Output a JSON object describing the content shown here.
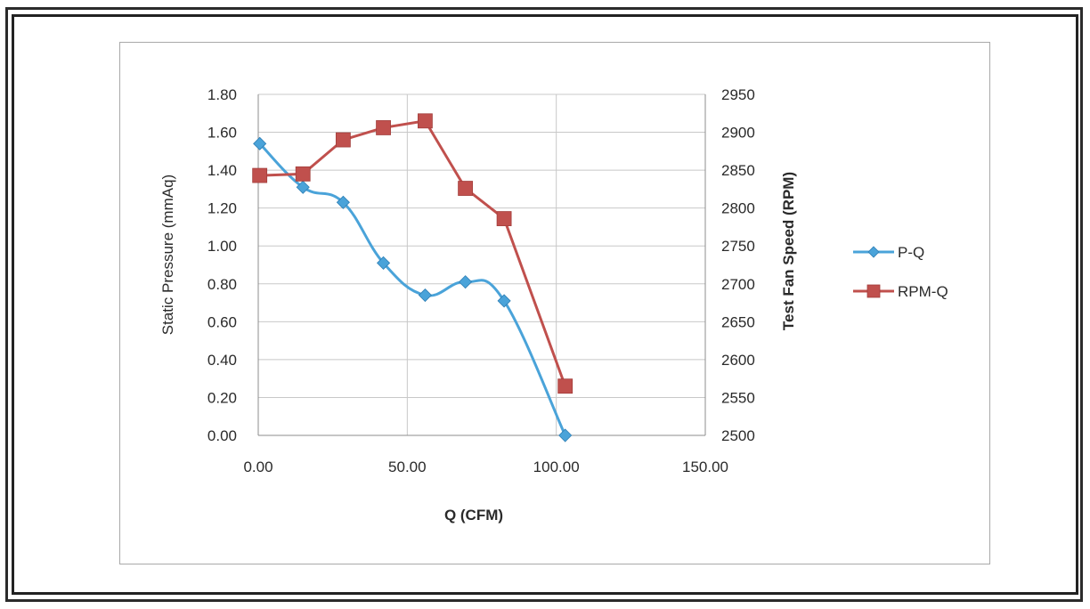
{
  "chart_data": {
    "type": "line",
    "title": "",
    "xlabel": "Q (CFM)",
    "ylabel": "Static Pressure (mmAq)",
    "y2label": "Test Fan Speed (RPM)",
    "xlim": [
      0,
      150
    ],
    "ylim": [
      0,
      1.8
    ],
    "y2lim": [
      2500,
      2950
    ],
    "x_ticks": [
      "0.00",
      "50.00",
      "100.00",
      "150.00"
    ],
    "y_ticks": [
      "0.00",
      "0.20",
      "0.40",
      "0.60",
      "0.80",
      "1.00",
      "1.20",
      "1.40",
      "1.60",
      "1.80"
    ],
    "y2_ticks": [
      "2500",
      "2550",
      "2600",
      "2650",
      "2700",
      "2750",
      "2800",
      "2850",
      "2900",
      "2950"
    ],
    "grid": true,
    "legend_position": "right",
    "series": [
      {
        "name": "P-Q",
        "axis": "left",
        "color": "#4aa3d9",
        "marker": "diamond",
        "smooth": true,
        "x": [
          0.5,
          15,
          28.5,
          42,
          56,
          69.5,
          82.5,
          103
        ],
        "y": [
          1.54,
          1.31,
          1.23,
          0.91,
          0.74,
          0.81,
          0.71,
          0.0
        ]
      },
      {
        "name": "RPM-Q",
        "axis": "right",
        "color": "#c0504d",
        "marker": "square",
        "smooth": false,
        "x": [
          0.5,
          15,
          28.5,
          42,
          56,
          69.5,
          82.5,
          103
        ],
        "y": [
          2843,
          2845,
          2890,
          2906,
          2915,
          2826,
          2786,
          2565
        ]
      }
    ]
  }
}
